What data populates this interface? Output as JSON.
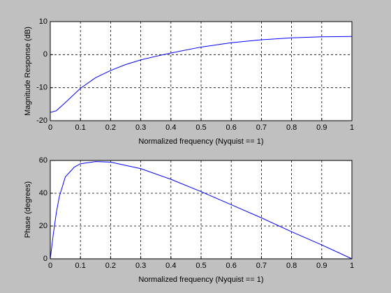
{
  "chart_data": [
    {
      "type": "line",
      "xlabel": "Normalized frequency (Nyquist == 1)",
      "ylabel": "Magnitude Response (dB)",
      "x": [
        0,
        0.02,
        0.05,
        0.1,
        0.15,
        0.2,
        0.25,
        0.3,
        0.35,
        0.4,
        0.5,
        0.6,
        0.7,
        0.8,
        0.9,
        1.0
      ],
      "series": [
        {
          "color": "#0000ff",
          "values": [
            -17.5,
            -17,
            -14.5,
            -10.2,
            -7,
            -4.8,
            -3,
            -1.6,
            -0.5,
            0.5,
            2.3,
            3.6,
            4.5,
            5.1,
            5.4,
            5.5
          ]
        }
      ],
      "xlim": [
        0,
        1
      ],
      "ylim": [
        -20,
        10
      ],
      "xticks": [
        0,
        0.1,
        0.2,
        0.3,
        0.4,
        0.5,
        0.6,
        0.7,
        0.8,
        0.9,
        1
      ],
      "yticks": [
        -20,
        -10,
        0,
        10
      ],
      "grid": true
    },
    {
      "type": "line",
      "xlabel": "Normalized frequency (Nyquist == 1)",
      "ylabel": "Phase (degrees)",
      "x": [
        0,
        0.01,
        0.02,
        0.03,
        0.05,
        0.08,
        0.1,
        0.15,
        0.2,
        0.3,
        0.4,
        0.5,
        0.6,
        0.7,
        0.8,
        0.9,
        1.0
      ],
      "series": [
        {
          "color": "#0000ff",
          "values": [
            0,
            15,
            28,
            38,
            50,
            56,
            58,
            59.3,
            59,
            55,
            48.5,
            41,
            33,
            25,
            16.5,
            8.5,
            0
          ]
        }
      ],
      "xlim": [
        0,
        1
      ],
      "ylim": [
        0,
        60
      ],
      "xticks": [
        0,
        0.1,
        0.2,
        0.3,
        0.4,
        0.5,
        0.6,
        0.7,
        0.8,
        0.9,
        1
      ],
      "yticks": [
        0,
        20,
        40,
        60
      ],
      "grid": true
    }
  ]
}
